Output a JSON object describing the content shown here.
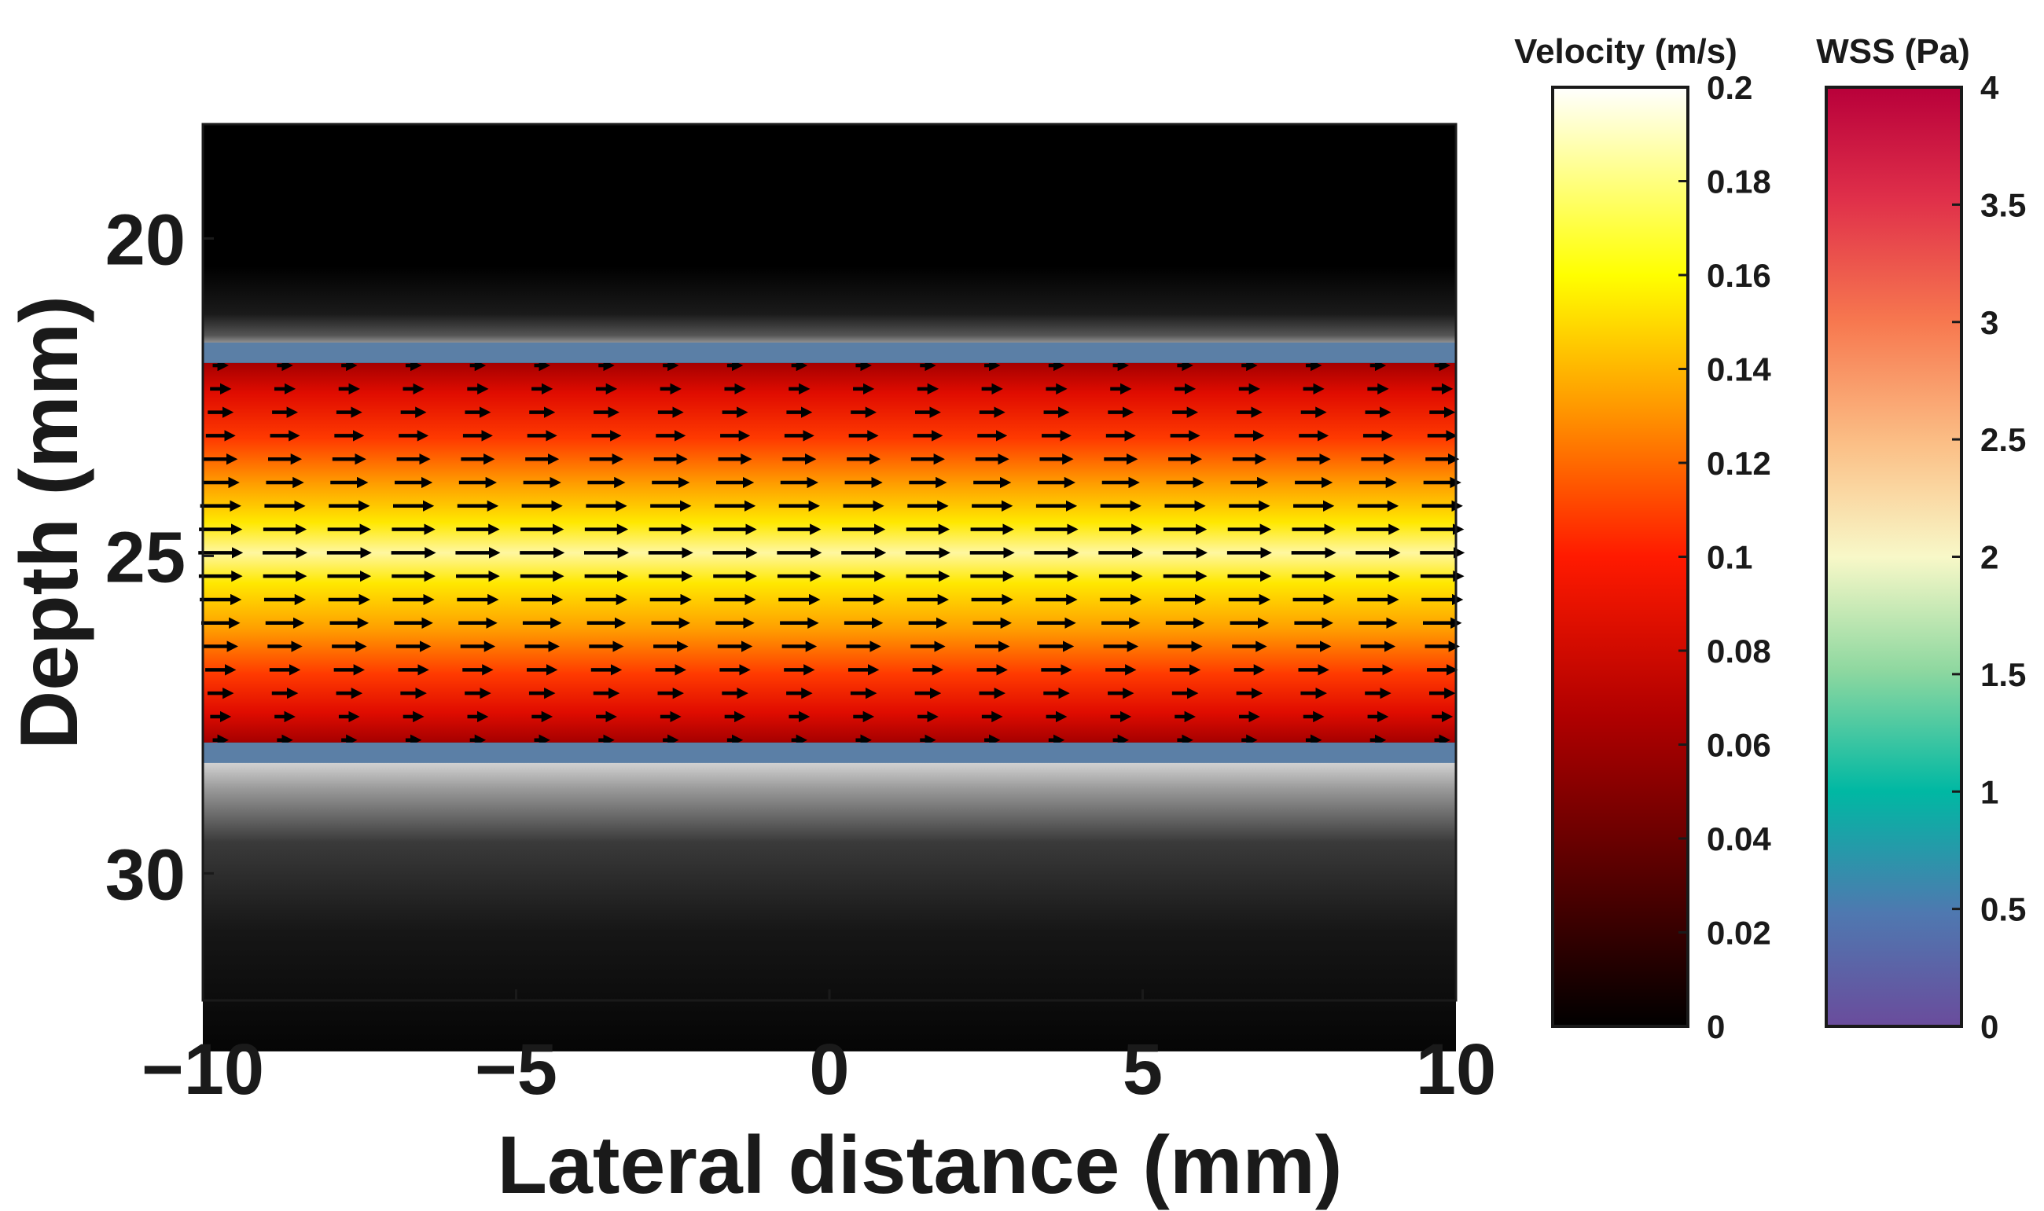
{
  "chart_data": {
    "type": "heatmap",
    "description_type": "ultrasound vector flow image",
    "xlabel": "Lateral distance (mm)",
    "ylabel": "Depth (mm)",
    "xlim": [
      -10,
      10
    ],
    "ylim": [
      32,
      18.2
    ],
    "x_ticks": [
      {
        "value": -10,
        "label": "−10"
      },
      {
        "value": -5,
        "label": "−5"
      },
      {
        "value": 0,
        "label": "0"
      },
      {
        "value": 5,
        "label": "5"
      },
      {
        "value": 10,
        "label": "10"
      }
    ],
    "y_ticks": [
      {
        "value": 20,
        "label": "20"
      },
      {
        "value": 25,
        "label": "25"
      },
      {
        "value": 30,
        "label": "30"
      }
    ],
    "vessel": {
      "upper_wall_depth": 21.8,
      "lower_wall_depth": 28.1,
      "wall_color": "#5b7fa6"
    },
    "velocity_profile": {
      "depths": [
        22.0,
        22.5,
        23.0,
        23.5,
        24.0,
        24.5,
        25.0,
        25.5,
        26.0,
        26.5,
        27.0,
        27.5,
        27.9
      ],
      "velocities": [
        0.03,
        0.07,
        0.1,
        0.13,
        0.16,
        0.18,
        0.19,
        0.18,
        0.16,
        0.13,
        0.1,
        0.06,
        0.03
      ]
    },
    "velocity_colorbar": {
      "title": "Velocity (m/s)",
      "range": [
        0,
        0.2
      ],
      "ticks": [
        "0",
        "0.02",
        "0.04",
        "0.06",
        "0.08",
        "0.1",
        "0.12",
        "0.14",
        "0.16",
        "0.18",
        "0.2"
      ]
    },
    "wss_colorbar": {
      "title": "WSS (Pa)",
      "range": [
        0,
        4
      ],
      "ticks": [
        "0",
        "0.5",
        "1",
        "1.5",
        "2",
        "2.5",
        "3",
        "3.5",
        "4"
      ]
    }
  }
}
